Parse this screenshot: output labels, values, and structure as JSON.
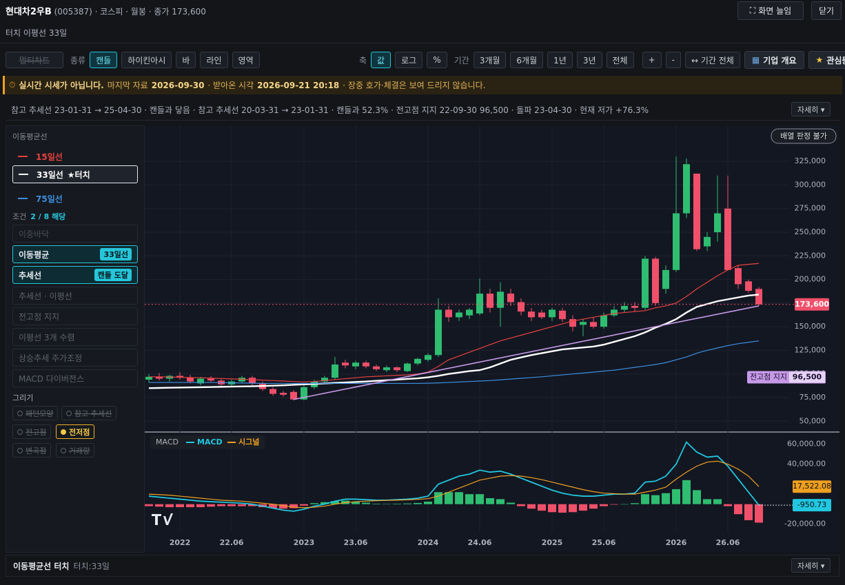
{
  "header": {
    "title": "현대차2우B",
    "meta": "(005387) · 코스피 · 월봉 · 종가 173,600",
    "subtitle": "터치 이평선 33일",
    "expand": "화면 늘임",
    "close": "닫기"
  },
  "toolbar": {
    "multi": "멀티차트",
    "type_label": "종류",
    "types": [
      "캔들",
      "하이킨아시",
      "바",
      "라인",
      "영역"
    ],
    "type_active": 0,
    "axis_label": "축",
    "axes": [
      "값",
      "로그",
      "%"
    ],
    "axis_active": 0,
    "period_label": "기간",
    "periods": [
      "3개월",
      "6개월",
      "1년",
      "3년",
      "전체"
    ],
    "zoom": [
      "+",
      "-"
    ],
    "full": "↔ 기간 전체",
    "company": "기업 개요",
    "watch": "관심등록"
  },
  "notice": {
    "strong": "실시간 시세가 아닙니다.",
    "t1": "마지막 자료",
    "d1": "2026-09-30",
    "t2": "· 받아온 시각",
    "d2": "2026-09-21 20:18",
    "t3": "· 장중 호가·체결은 보여 드리지 않습니다."
  },
  "info": {
    "text": "참고 추세선 23-01-31 → 25-04-30 · 캔들과 닿음 · 참고 추세선 20-03-31 → 23-01-31 · 캔들과 52.3% · 전고점 지지 22-09-30 96,500 · 돌파 23-04-30 · 현재 저가 +76.3%",
    "more": "자세히 ▾"
  },
  "sidebar": {
    "ma_title": "이동평균선",
    "touch": "★터치",
    "touch_series": 1,
    "cond_label": "조건",
    "cond_count": "2 / 8 해당",
    "conditions": [
      {
        "label": "이중바닥",
        "state": "disabled"
      },
      {
        "label": "이동평균",
        "badge": "33일선",
        "state": "active"
      },
      {
        "label": "추세선",
        "badge": "캔들 도달",
        "state": "active"
      },
      {
        "label": "추세선 · 이평선",
        "state": "off"
      },
      {
        "label": "전고점 지지",
        "state": "off"
      },
      {
        "label": "이평선 3개 수렴",
        "state": "off"
      },
      {
        "label": "상승추세 주가조정",
        "state": "off"
      },
      {
        "label": "MACD 다이버전스",
        "state": "off"
      }
    ],
    "draw_title": "그리기",
    "draw": [
      {
        "label": "패턴모양",
        "on": false
      },
      {
        "label": "참고 추세선",
        "on": false
      },
      {
        "label": "전고점",
        "on": false
      },
      {
        "label": "전저점",
        "on": true
      },
      {
        "label": "변곡점",
        "on": false
      },
      {
        "label": "거래량",
        "on": false
      }
    ]
  },
  "footer": {
    "title": "이동평균선 터치",
    "detail": "터치:33일",
    "more": "자세히 ▾"
  },
  "chart_data": [
    {
      "type": "candlestick",
      "annotation": "배열 판정 불가",
      "up_color": "#2ebd71",
      "down_color": "#f0506a",
      "grid": true,
      "categories": [
        null,
        null,
        null,
        "2022",
        null,
        null,
        null,
        null,
        "22.06",
        null,
        null,
        null,
        null,
        null,
        null,
        "2023",
        null,
        null,
        null,
        null,
        "23.06",
        null,
        null,
        null,
        null,
        null,
        null,
        "2024",
        null,
        null,
        null,
        null,
        "24.06",
        null,
        null,
        null,
        null,
        null,
        null,
        "2025",
        null,
        null,
        null,
        null,
        "25.06",
        null,
        null,
        null,
        null,
        null,
        null,
        "2026",
        null,
        null,
        null,
        null,
        "26.06",
        null,
        null,
        null
      ],
      "open": [
        94000,
        97000,
        95000,
        98000,
        96000,
        90000,
        95000,
        93000,
        89000,
        92000,
        96000,
        90000,
        84000,
        80000,
        81000,
        73000,
        86000,
        92000,
        96000,
        112000,
        108000,
        112000,
        108000,
        104000,
        107000,
        103000,
        111000,
        115000,
        120000,
        168000,
        160000,
        162000,
        164000,
        185000,
        170000,
        185000,
        176000,
        166000,
        165000,
        160000,
        167000,
        158000,
        152000,
        155000,
        150000,
        162000,
        168000,
        172000,
        170000,
        222000,
        190000,
        210000,
        270000,
        312000,
        235000,
        250000,
        275000,
        212000,
        198000,
        190000
      ],
      "high": [
        100000,
        101000,
        99000,
        102000,
        99000,
        97000,
        98000,
        95000,
        94000,
        98000,
        98000,
        92000,
        86000,
        82000,
        83000,
        88000,
        94000,
        98000,
        118000,
        115000,
        114000,
        114000,
        110000,
        109000,
        108000,
        112000,
        117000,
        122000,
        180000,
        172000,
        168000,
        170000,
        201000,
        190000,
        197000,
        190000,
        180000,
        170000,
        168000,
        170000,
        170000,
        162000,
        158000,
        160000,
        165000,
        172000,
        176000,
        176000,
        225000,
        224000,
        215000,
        330000,
        328000,
        312000,
        250000,
        310000,
        310000,
        215000,
        200000,
        192000
      ],
      "low": [
        91000,
        93000,
        92000,
        94000,
        90000,
        88000,
        91000,
        87000,
        87000,
        90000,
        88000,
        82000,
        77000,
        76000,
        72000,
        72000,
        84000,
        90000,
        94000,
        106000,
        105000,
        106000,
        103000,
        102000,
        102000,
        102000,
        109000,
        113000,
        118000,
        155000,
        156000,
        158000,
        162000,
        165000,
        150000,
        172000,
        162000,
        156000,
        158000,
        156000,
        155000,
        145000,
        140000,
        148000,
        148000,
        160000,
        165000,
        166000,
        168000,
        172000,
        185000,
        208000,
        265000,
        230000,
        230000,
        240000,
        210000,
        190000,
        186000,
        172000
      ],
      "close": [
        97000,
        95000,
        98000,
        96000,
        92000,
        95000,
        93000,
        89000,
        92000,
        96000,
        90000,
        84000,
        79000,
        78000,
        73000,
        86000,
        92000,
        96000,
        110000,
        109000,
        112000,
        108000,
        105000,
        107000,
        104000,
        111000,
        116000,
        120000,
        168000,
        160000,
        165000,
        168000,
        185000,
        170000,
        187000,
        176000,
        166000,
        160000,
        160000,
        168000,
        158000,
        150000,
        155000,
        150000,
        162000,
        168000,
        172000,
        170000,
        222000,
        175000,
        210000,
        270000,
        322000,
        232000,
        245000,
        270000,
        210000,
        195000,
        188000,
        173600
      ],
      "series": [
        {
          "name": "15일선",
          "color": "#e8423f",
          "width": 1.2,
          "values": [
            97000,
            97000,
            96800,
            96500,
            96200,
            96000,
            95600,
            95200,
            94800,
            94400,
            94000,
            93500,
            93000,
            92500,
            92000,
            91500,
            92000,
            93000,
            94000,
            95000,
            96000,
            97000,
            97500,
            98000,
            98500,
            99000,
            100000,
            102000,
            108000,
            115000,
            119000,
            123000,
            127000,
            131000,
            135000,
            138000,
            141000,
            144000,
            147000,
            150000,
            153000,
            156000,
            158000,
            160000,
            162000,
            164000,
            165000,
            166000,
            167000,
            170000,
            172000,
            175000,
            182000,
            190000,
            197000,
            204000,
            210000,
            215000,
            216000,
            217000
          ]
        },
        {
          "name": "33일선",
          "color": "#ffffff",
          "width": 2.4,
          "values": [
            85000,
            85200,
            85400,
            85600,
            85800,
            86000,
            86200,
            86400,
            86600,
            86800,
            87000,
            87300,
            87600,
            88000,
            88500,
            89000,
            89500,
            90000,
            90500,
            91000,
            91500,
            92000,
            92700,
            93400,
            94000,
            94700,
            95400,
            96500,
            98000,
            100000,
            101500,
            103000,
            104000,
            107000,
            111000,
            115000,
            117500,
            120000,
            122000,
            124000,
            126000,
            127000,
            128000,
            129000,
            131000,
            134000,
            137000,
            140000,
            144000,
            149000,
            153000,
            158000,
            165000,
            171000,
            174000,
            177000,
            179000,
            181000,
            183000,
            184000
          ]
        },
        {
          "name": "75일선",
          "color": "#3d8fe0",
          "width": 1.2,
          "values": [
            91000,
            91000,
            91000,
            91000,
            91000,
            91000,
            91000,
            90800,
            90600,
            90400,
            90200,
            90000,
            90000,
            90000,
            90000,
            90000,
            90000,
            90000,
            90000,
            90000,
            90000,
            90000,
            90000,
            90000,
            90000,
            90000,
            90000,
            90200,
            90500,
            91000,
            91500,
            92000,
            92500,
            93000,
            93800,
            94600,
            95400,
            96200,
            97000,
            98000,
            99000,
            100000,
            101000,
            102000,
            103000,
            104000,
            105500,
            107000,
            108500,
            110000,
            112000,
            115000,
            118000,
            122000,
            125000,
            127500,
            130000,
            132000,
            133500,
            135000
          ]
        }
      ],
      "trendline": {
        "color": "#c79ae8",
        "x": [
          14,
          59
        ],
        "values": [
          73000,
          172000
        ]
      },
      "current_price": {
        "value": 173600,
        "label": "173,600",
        "color": "#f0506a"
      },
      "support": {
        "name": "전고점 지지",
        "value": 96500,
        "label": "96,500",
        "color": "#c79ae8"
      },
      "ylim": [
        40000,
        355000
      ],
      "yticks": [
        {
          "value": 50000,
          "label": "50,000"
        },
        {
          "value": 75000,
          "label": "75,000"
        },
        {
          "value": 100000,
          "label": "100,000"
        },
        {
          "value": 125000,
          "label": "125,000"
        },
        {
          "value": 150000,
          "label": "150,000"
        },
        {
          "value": 175000,
          "label": "175,000"
        },
        {
          "value": 200000,
          "label": "200,000"
        },
        {
          "value": 225000,
          "label": "225,000"
        },
        {
          "value": 250000,
          "label": "250,000"
        },
        {
          "value": 275000,
          "label": "275,000"
        },
        {
          "value": 300000,
          "label": "300,000"
        },
        {
          "value": 325000,
          "label": "325,000"
        }
      ]
    },
    {
      "type": "macd",
      "title": "MACD",
      "ylim": [
        -25000,
        70000
      ],
      "yticks": [
        {
          "value": 60000,
          "label": "60,000.00"
        },
        {
          "value": 40000,
          "label": "40,000.00"
        },
        {
          "value": -20000,
          "label": "-20,000.00"
        }
      ],
      "histogram": {
        "up_color": "#2ebd71",
        "down_color": "#f0506a",
        "values": [
          -2000,
          -2500,
          -3000,
          -3000,
          -3000,
          -3000,
          -2500,
          -2000,
          -2000,
          -2000,
          -2000,
          -3000,
          -4000,
          -4500,
          -4000,
          -1500,
          1000,
          2000,
          3000,
          3500,
          2500,
          1500,
          500,
          200,
          500,
          700,
          1200,
          2500,
          12000,
          12000,
          12000,
          10000,
          10000,
          6000,
          5000,
          1500,
          -2000,
          -4500,
          -6500,
          -8000,
          -8500,
          -8000,
          -6500,
          -4500,
          -2000,
          -500,
          0,
          1000,
          10000,
          9000,
          11000,
          15000,
          24000,
          14000,
          5000,
          5000,
          -2000,
          -10000,
          -16000,
          -18473
        ]
      },
      "series": [
        {
          "name": "MACD",
          "color": "#22c7e0",
          "last_label": "-950.73",
          "values": [
            8000,
            7000,
            6000,
            5000,
            4000,
            3000,
            2500,
            2000,
            1500,
            1000,
            0,
            -2000,
            -4000,
            -6000,
            -7000,
            -5000,
            -2000,
            0,
            3000,
            5000,
            5000,
            4500,
            4000,
            4000,
            4500,
            5000,
            6000,
            8000,
            20000,
            24000,
            28000,
            30000,
            34000,
            32000,
            33000,
            30000,
            26000,
            22000,
            18000,
            14000,
            11000,
            9000,
            8000,
            8000,
            9000,
            10000,
            10000,
            11000,
            22000,
            23000,
            28000,
            40000,
            62000,
            52000,
            47000,
            48000,
            38000,
            25000,
            12000,
            -950.73
          ]
        },
        {
          "name": "시그널",
          "color": "#f0a020",
          "last_label": "17,522.08",
          "values": [
            10000,
            9500,
            9000,
            8000,
            7000,
            6000,
            5000,
            4000,
            3500,
            3000,
            2000,
            1000,
            0,
            -1500,
            -3000,
            -3500,
            -3000,
            -2000,
            0,
            1500,
            2500,
            3000,
            3500,
            3800,
            4000,
            4300,
            4800,
            5500,
            8000,
            12000,
            16000,
            20000,
            24000,
            26000,
            28000,
            28500,
            28000,
            26500,
            24500,
            22000,
            19500,
            17000,
            14500,
            12500,
            11000,
            10500,
            10000,
            10000,
            12000,
            14000,
            17000,
            25000,
            32000,
            38000,
            42000,
            43000,
            40000,
            35000,
            28000,
            17522.08
          ]
        }
      ]
    }
  ]
}
